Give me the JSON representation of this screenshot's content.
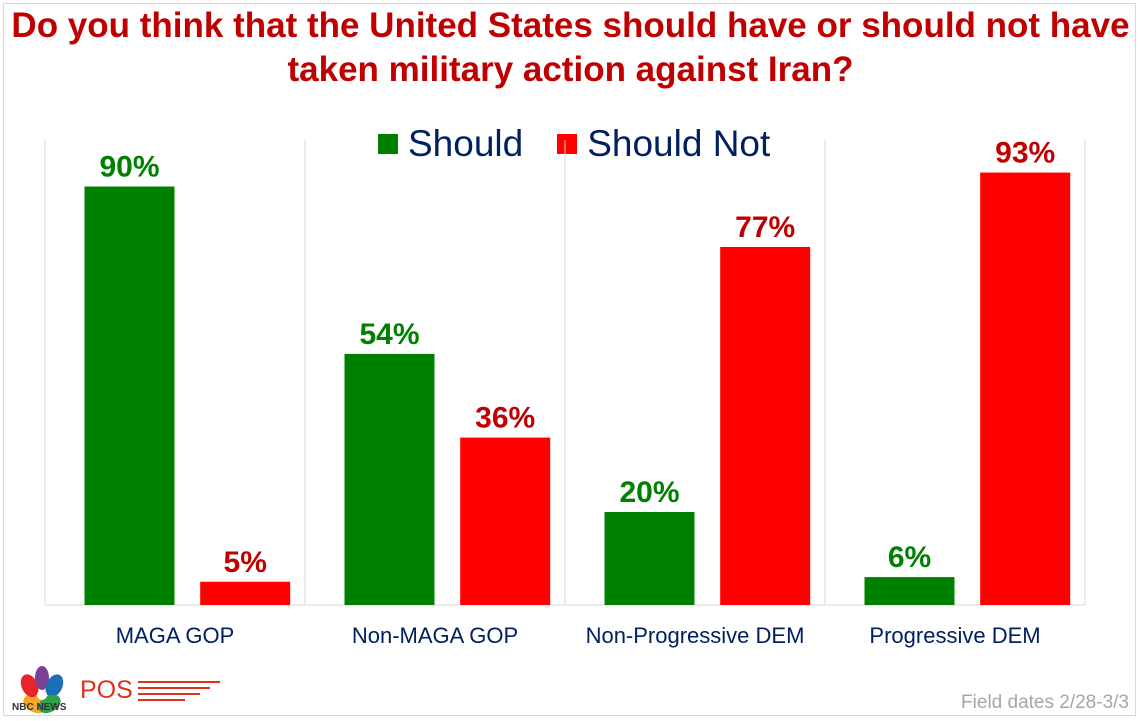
{
  "title": "Do you think that the United States should have or should not have taken military action against Iran?",
  "colors": {
    "title": "#c00000",
    "should": "#008000",
    "should_not": "#ff0000",
    "should_label": "#008000",
    "should_not_label": "#c00000",
    "legend_text": "#002060"
  },
  "legend": {
    "should": "Should",
    "should_not": "Should Not"
  },
  "chart_data": {
    "type": "bar",
    "title": "Do you think that the United States should have or should not have taken military action against Iran?",
    "categories": [
      "MAGA GOP",
      "Non-MAGA GOP",
      "Non-Progressive DEM",
      "Progressive DEM"
    ],
    "series": [
      {
        "name": "Should",
        "values": [
          90,
          54,
          20,
          6
        ]
      },
      {
        "name": "Should Not",
        "values": [
          5,
          36,
          77,
          93
        ]
      }
    ],
    "value_suffix": "%",
    "ylim": [
      0,
      100
    ],
    "legend_position": "top-center",
    "grid": false
  },
  "footer": {
    "brand_network": "NBC NEWS",
    "brand_pollster": "POS",
    "field_dates": "Field dates 2/28-3/3"
  }
}
